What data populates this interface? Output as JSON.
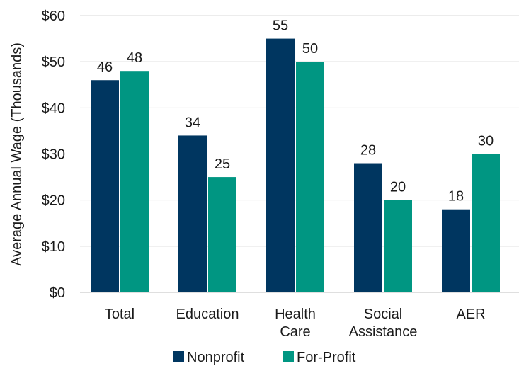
{
  "chart_data": {
    "type": "bar",
    "categories": [
      [
        "Total"
      ],
      [
        "Education"
      ],
      [
        "Health",
        "Care"
      ],
      [
        "Social",
        "Assistance"
      ],
      [
        "AER"
      ]
    ],
    "series": [
      {
        "name": "Nonprofit",
        "color": "#003660",
        "values": [
          46,
          34,
          55,
          28,
          18
        ]
      },
      {
        "name": "For-Profit",
        "color": "#009682",
        "values": [
          48,
          25,
          50,
          20,
          30
        ]
      }
    ],
    "ylabel": "Average Annual Wage (Thousands)",
    "ylim": [
      0,
      60
    ],
    "yticks": [
      0,
      10,
      20,
      30,
      40,
      50,
      60
    ],
    "ytick_labels": [
      "$0",
      "$10",
      "$20",
      "$30",
      "$40",
      "$50",
      "$60"
    ],
    "grid": true,
    "legend_position": "bottom"
  }
}
